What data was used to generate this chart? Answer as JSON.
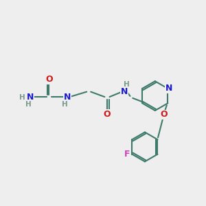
{
  "bg_color": "#eeeeee",
  "bond_color": "#3d7a6a",
  "bond_width": 1.5,
  "N_color": "#1a1acc",
  "O_color": "#cc1a1a",
  "F_color": "#cc44bb",
  "H_color": "#7a9a8a",
  "font_size_atom": 9,
  "font_size_H": 7.5,
  "xlim": [
    0,
    10
  ],
  "ylim": [
    0,
    10
  ]
}
